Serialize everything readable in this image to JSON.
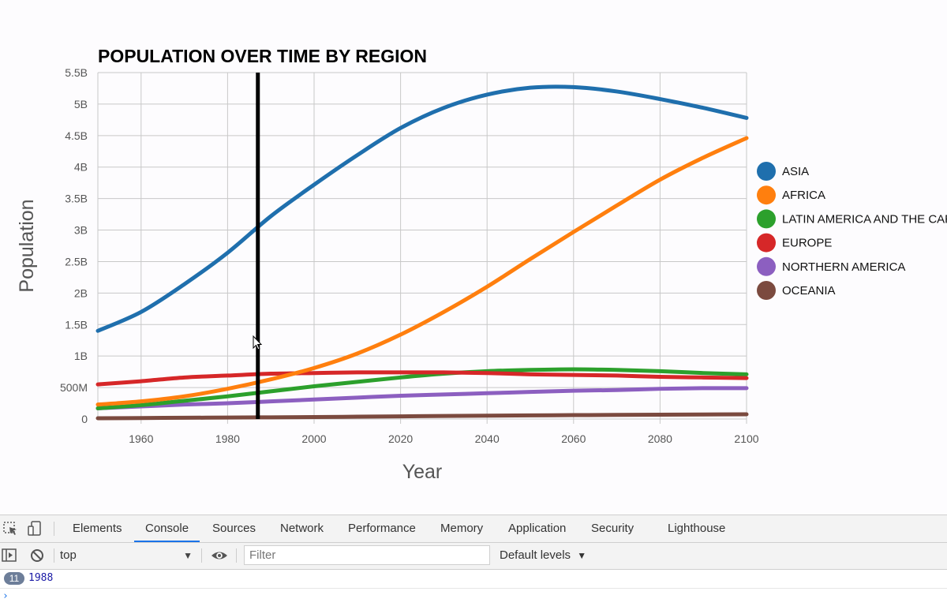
{
  "chart_data": {
    "type": "line",
    "title": "POPULATION OVER TIME BY REGION",
    "xlabel": "Year",
    "ylabel": "Population",
    "xlim": [
      1950,
      2100
    ],
    "ylim": [
      0,
      5500000000
    ],
    "xticks": [
      1960,
      1980,
      2000,
      2020,
      2040,
      2060,
      2080,
      2100
    ],
    "yticks": [
      {
        "value": 0,
        "label": "0"
      },
      {
        "value": 500000000,
        "label": "500M"
      },
      {
        "value": 1000000000,
        "label": "1B"
      },
      {
        "value": 1500000000,
        "label": "1.5B"
      },
      {
        "value": 2000000000,
        "label": "2B"
      },
      {
        "value": 2500000000,
        "label": "2.5B"
      },
      {
        "value": 3000000000,
        "label": "3B"
      },
      {
        "value": 3500000000,
        "label": "3.5B"
      },
      {
        "value": 4000000000,
        "label": "4B"
      },
      {
        "value": 4500000000,
        "label": "4.5B"
      },
      {
        "value": 5000000000,
        "label": "5B"
      },
      {
        "value": 5500000000,
        "label": "5.5B"
      }
    ],
    "grid": true,
    "legend_position": "right",
    "x": [
      1950,
      1960,
      1970,
      1980,
      1990,
      2000,
      2010,
      2020,
      2030,
      2040,
      2050,
      2060,
      2070,
      2080,
      2090,
      2100
    ],
    "series": [
      {
        "name": "ASIA",
        "color": "#1f6fad",
        "values": [
          1400000000.0,
          1700000000.0,
          2140000000.0,
          2640000000.0,
          3220000000.0,
          3720000000.0,
          4190000000.0,
          4620000000.0,
          4940000000.0,
          5150000000.0,
          5260000000.0,
          5270000000.0,
          5200000000.0,
          5080000000.0,
          4940000000.0,
          4780000000.0
        ]
      },
      {
        "name": "AFRICA",
        "color": "#ff7f0e",
        "values": [
          230000000.0,
          280000000.0,
          360000000.0,
          480000000.0,
          630000000.0,
          810000000.0,
          1040000000.0,
          1340000000.0,
          1700000000.0,
          2100000000.0,
          2540000000.0,
          2970000000.0,
          3390000000.0,
          3800000000.0,
          4150000000.0,
          4460000000.0
        ]
      },
      {
        "name": "LATIN AMERICA AND THE CARIBBEAN",
        "color": "#2ca02c",
        "values": [
          170000000.0,
          220000000.0,
          290000000.0,
          360000000.0,
          440000000.0,
          520000000.0,
          590000000.0,
          660000000.0,
          720000000.0,
          760000000.0,
          780000000.0,
          790000000.0,
          780000000.0,
          760000000.0,
          730000000.0,
          710000000.0
        ]
      },
      {
        "name": "EUROPE",
        "color": "#d62728",
        "values": [
          550000000.0,
          600000000.0,
          660000000.0,
          690000000.0,
          720000000.0,
          730000000.0,
          740000000.0,
          740000000.0,
          740000000.0,
          730000000.0,
          710000000.0,
          700000000.0,
          690000000.0,
          670000000.0,
          660000000.0,
          650000000.0
        ]
      },
      {
        "name": "NORTHERN AMERICA",
        "color": "#8c5fc0",
        "values": [
          170000000.0,
          200000000.0,
          230000000.0,
          250000000.0,
          280000000.0,
          310000000.0,
          340000000.0,
          370000000.0,
          390000000.0,
          410000000.0,
          430000000.0,
          450000000.0,
          460000000.0,
          480000000.0,
          490000000.0,
          490000000.0
        ]
      },
      {
        "name": "OCEANIA",
        "color": "#7b4a3f",
        "values": [
          13000000.0,
          16000000.0,
          20000000.0,
          23000000.0,
          27000000.0,
          31000000.0,
          37000000.0,
          43000000.0,
          49000000.0,
          54000000.0,
          58000000.0,
          62000000.0,
          66000000.0,
          69000000.0,
          72000000.0,
          75000000.0
        ]
      }
    ],
    "annotations": [
      {
        "type": "vertical-line",
        "x": 1987,
        "color": "#000000"
      }
    ]
  },
  "devtools": {
    "tabs": [
      {
        "label": "Elements",
        "active": false
      },
      {
        "label": "Console",
        "active": true
      },
      {
        "label": "Sources",
        "active": false
      },
      {
        "label": "Network",
        "active": false
      },
      {
        "label": "Performance",
        "active": false
      },
      {
        "label": "Memory",
        "active": false
      },
      {
        "label": "Application",
        "active": false
      },
      {
        "label": "Security",
        "active": false
      },
      {
        "label": "Lighthouse",
        "active": false
      }
    ],
    "context": "top",
    "filter_placeholder": "Filter",
    "levels": "Default levels",
    "log_count": "11",
    "log_value": "1988",
    "prompt": "›",
    "accent_color": "#1a73e8"
  }
}
